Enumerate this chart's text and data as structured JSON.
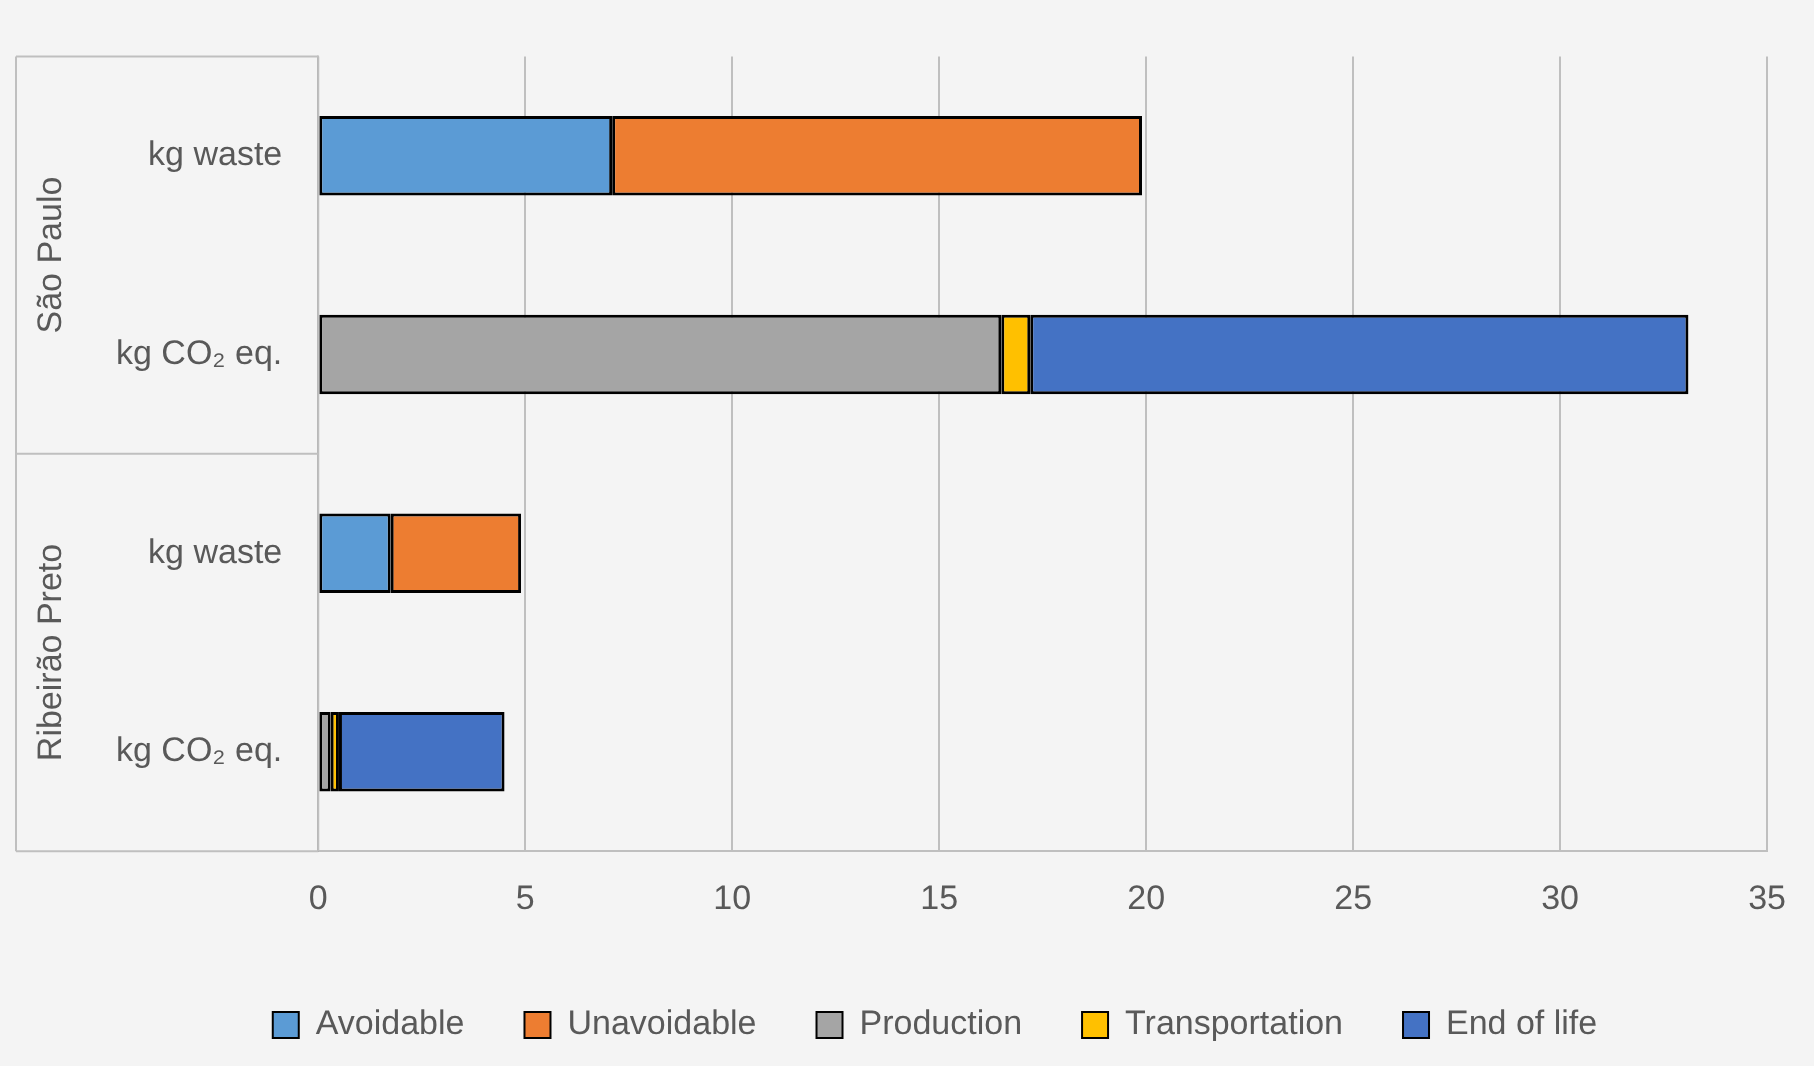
{
  "chart_data": {
    "type": "bar",
    "orientation": "horizontal",
    "stacked": true,
    "categories": [
      "kg waste",
      "kg CO₂ eq.",
      "kg waste",
      "kg CO₂ eq."
    ],
    "series": [
      {
        "name": "Avoidable",
        "color": "#5b9bd5",
        "values": [
          7.1,
          null,
          1.75,
          null
        ]
      },
      {
        "name": "Unavoidable",
        "color": "#ed7d31",
        "values": [
          12.8,
          null,
          3.15,
          null
        ]
      },
      {
        "name": "Production",
        "color": "#a5a5a5",
        "values": [
          null,
          16.5,
          null,
          0.3
        ]
      },
      {
        "name": "Transportation",
        "color": "#ffc000",
        "values": [
          null,
          0.7,
          null,
          0.2
        ]
      },
      {
        "name": "End of life",
        "color": "#4472c4",
        "values": [
          null,
          15.9,
          null,
          4.0
        ]
      }
    ],
    "xlim": [
      0,
      35
    ],
    "xticks": [
      0,
      5,
      10,
      15,
      20,
      25,
      30,
      35
    ],
    "grid": "x",
    "legend": "bottom",
    "annotations": [
      "São Paulo",
      "Ribeirão Preto"
    ]
  }
}
